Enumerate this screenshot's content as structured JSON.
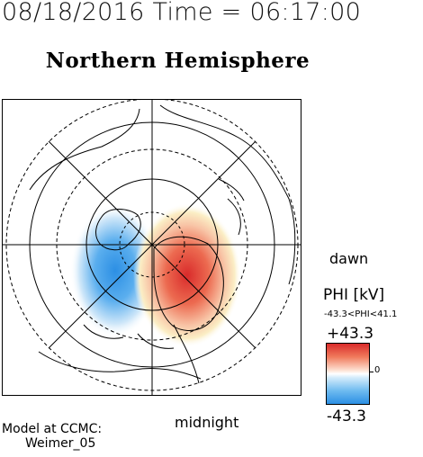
{
  "header": {
    "datetime": "08/18/2016 Time = 06:17:00",
    "title": "Northern Hemisphere"
  },
  "map": {
    "type": "polar projection map, north pole centered",
    "grid": "latitude circles (dashed) and longitude spokes",
    "contours": "continental coastlines",
    "field": "PHI electric potential",
    "negative_cell_side": "left (dusk)",
    "positive_cell_side": "right (dawn)"
  },
  "labels": {
    "dawn": "dawn",
    "midnight": "midnight"
  },
  "colorbar": {
    "label": "PHI [kV]",
    "range_text": "-43.3<PHI<41.1",
    "max_label": "+43.3",
    "zero_label": "0",
    "min_label": "-43.3",
    "colors": {
      "max": "#d92b2b",
      "mid": "#ffffff",
      "min": "#2c8fe4"
    }
  },
  "footer": {
    "model_label": "Model at CCMC:",
    "model_name": "Weimer_05"
  }
}
